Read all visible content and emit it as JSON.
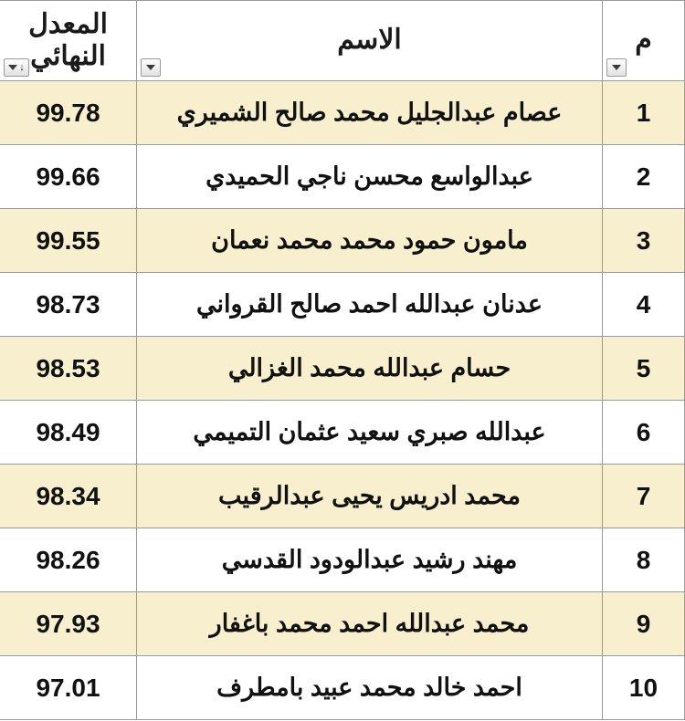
{
  "headers": {
    "num": "م",
    "name": "الاسم",
    "score_line1": "المعدل",
    "score_line2": "النهائي"
  },
  "colors": {
    "odd_row_bg": "#f7efce",
    "even_row_bg": "#ffffff",
    "border": "#9a9a9a",
    "text": "#111111"
  },
  "columns": {
    "num_width": 90,
    "name_width": 510,
    "score_width": 150
  },
  "rows": [
    {
      "num": "1",
      "name": "عصام عبدالجليل محمد صالح الشميري",
      "score": "99.78"
    },
    {
      "num": "2",
      "name": "عبدالواسع محسن ناجي  الحميدي",
      "score": "99.66"
    },
    {
      "num": "3",
      "name": "مامون حمود محمد محمد نعمان",
      "score": "99.55"
    },
    {
      "num": "4",
      "name": "عدنان عبدالله احمد صالح  القرواني",
      "score": "98.73"
    },
    {
      "num": "5",
      "name": "حسام عبدالله محمد الغزالي",
      "score": "98.53"
    },
    {
      "num": "6",
      "name": "عبدالله صبري سعيد عثمان التميمي",
      "score": "98.49"
    },
    {
      "num": "7",
      "name": "محمد ادريس يحيى عبدالرقيب",
      "score": "98.34"
    },
    {
      "num": "8",
      "name": "مهند رشيد عبدالودود القدسي",
      "score": "98.26"
    },
    {
      "num": "9",
      "name": "محمد عبدالله احمد محمد باغفار",
      "score": "97.93"
    },
    {
      "num": "10",
      "name": "احمد خالد محمد عبيد بامطرف",
      "score": "97.01"
    }
  ]
}
